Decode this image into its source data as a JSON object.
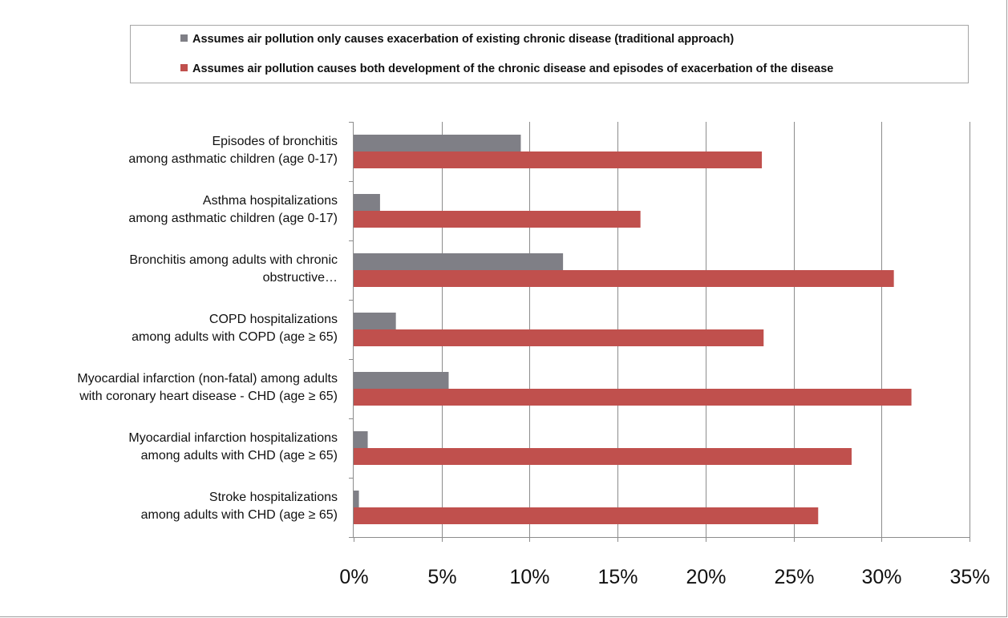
{
  "chart_data": {
    "type": "bar",
    "orientation": "horizontal",
    "categories": [
      [
        "Episodes of bronchitis",
        "among asthmatic children (age 0-17)"
      ],
      [
        "Asthma hospitalizations",
        "among asthmatic children (age 0-17)"
      ],
      [
        "Bronchitis among adults with chronic",
        "obstructive…"
      ],
      [
        "COPD hospitalizations",
        "among adults with COPD (age ≥ 65)"
      ],
      [
        "Myocardial infarction (non-fatal) among adults",
        "with coronary heart disease - CHD (age ≥ 65)"
      ],
      [
        "Myocardial infarction hospitalizations",
        "among adults with CHD (age ≥ 65)"
      ],
      [
        "Stroke hospitalizations",
        "among adults with CHD (age ≥ 65)"
      ]
    ],
    "series": [
      {
        "name": "Assumes air pollution only causes exacerbation of existing chronic disease (traditional approach)",
        "color": "#7f7f86",
        "values": [
          0.095,
          0.015,
          0.119,
          0.024,
          0.054,
          0.008,
          0.003
        ]
      },
      {
        "name": "Assumes air pollution causes both development of the chronic disease and episodes of exacerbation of the disease",
        "color": "#c0504d",
        "values": [
          0.232,
          0.163,
          0.307,
          0.233,
          0.317,
          0.283,
          0.264
        ]
      }
    ],
    "xlim": [
      0,
      0.35
    ],
    "xticks": [
      0,
      0.05,
      0.1,
      0.15,
      0.2,
      0.25,
      0.3,
      0.35
    ],
    "xtick_labels": [
      "0%",
      "5%",
      "10%",
      "15%",
      "20%",
      "25%",
      "30%",
      "35%"
    ],
    "grid": "vertical",
    "legend_position": "top"
  }
}
